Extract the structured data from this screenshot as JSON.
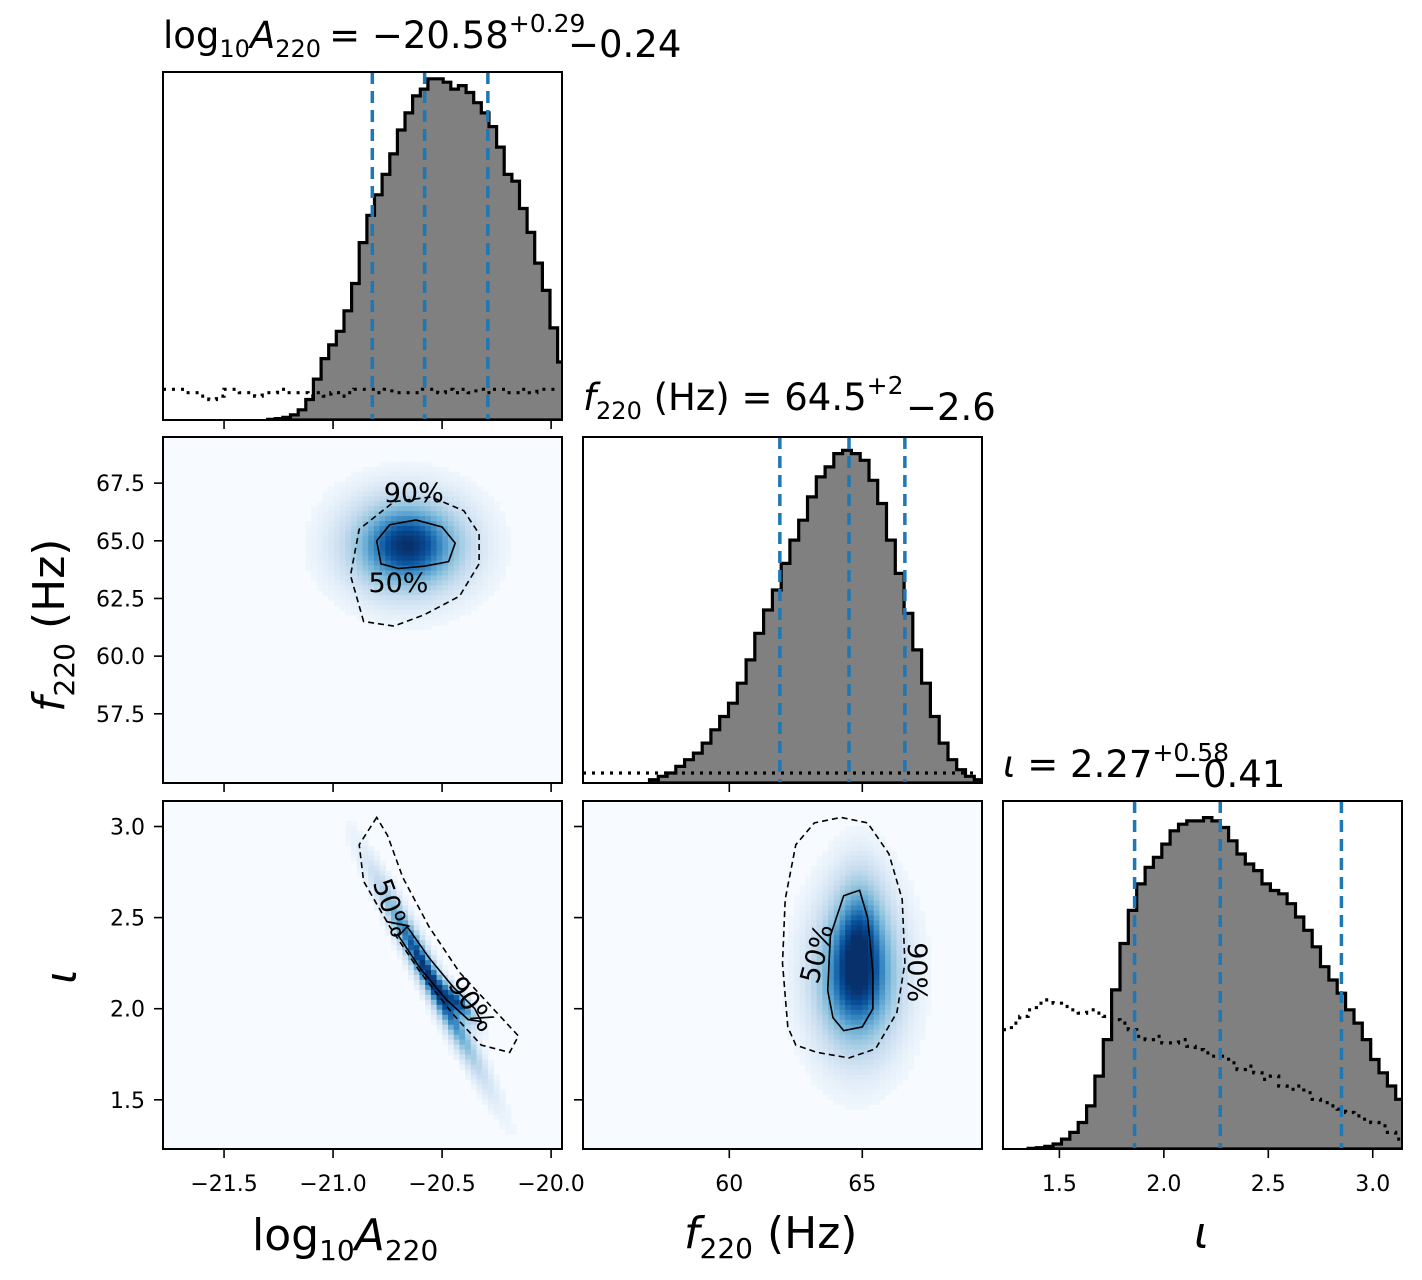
{
  "chart_data": {
    "type": "corner",
    "parameters": [
      {
        "key": "logA",
        "axis_label_base": "log",
        "axis_label_sub1": "10",
        "axis_label_var": "A",
        "axis_label_sub2": "220",
        "range": [
          -21.78,
          -19.95
        ],
        "ticks": [
          -21.5,
          -21.0,
          -20.5,
          -20.0
        ],
        "tick_labels": [
          "−21.5",
          "−21.0",
          "−20.5",
          "−20.0"
        ],
        "title": {
          "prefix_base": "log",
          "prefix_sub1": "10",
          "var": "A",
          "var_sub": "220",
          "unit": "",
          "median": "= −20.58",
          "plus": "+0.29",
          "minus": "−0.24"
        },
        "quantiles": [
          -20.82,
          -20.58,
          -20.29
        ],
        "posterior_hist": {
          "bin_start": -21.3,
          "bin_width": 0.035,
          "densities": [
            0.002,
            0.004,
            0.008,
            0.015,
            0.03,
            0.06,
            0.12,
            0.18,
            0.22,
            0.26,
            0.32,
            0.4,
            0.52,
            0.6,
            0.66,
            0.72,
            0.78,
            0.85,
            0.9,
            0.95,
            0.97,
            1.0,
            1.0,
            0.99,
            0.97,
            0.98,
            0.96,
            0.93,
            0.9,
            0.86,
            0.8,
            0.72,
            0.7,
            0.62,
            0.55,
            0.46,
            0.38,
            0.27,
            0.17,
            0.1,
            0.07,
            0.05,
            0.03,
            0.015,
            0.008,
            0.003
          ]
        },
        "prior_hist": {
          "bin_start": -21.78,
          "bin_width": 0.035,
          "densities": [
            0.09,
            0.09,
            0.09,
            0.08,
            0.08,
            0.07,
            0.06,
            0.07,
            0.09,
            0.09,
            0.08,
            0.08,
            0.07,
            0.08,
            0.08,
            0.09,
            0.08,
            0.08,
            0.08,
            0.07,
            0.08,
            0.07,
            0.08,
            0.07,
            0.08,
            0.09,
            0.09,
            0.09,
            0.08,
            0.09,
            0.08,
            0.08,
            0.08,
            0.08,
            0.09,
            0.09,
            0.08,
            0.09,
            0.08,
            0.09,
            0.08,
            0.09,
            0.08,
            0.09,
            0.09,
            0.08,
            0.08,
            0.09,
            0.08,
            0.09,
            0.09,
            0.09
          ]
        }
      },
      {
        "key": "f220",
        "axis_label_var": "f",
        "axis_label_sub": "220",
        "axis_label_unit": " (Hz)",
        "range": [
          54.5,
          69.5
        ],
        "ticks_diag": [
          60,
          65
        ],
        "tick_labels_diag": [
          "60",
          "65"
        ],
        "ticks_y": [
          57.5,
          60.0,
          62.5,
          65.0,
          67.5
        ],
        "tick_labels_y": [
          "57.5",
          "60.0",
          "62.5",
          "65.0",
          "67.5"
        ],
        "title": {
          "var": "f",
          "var_sub": "220",
          "unit": " (Hz)",
          "median": " = 64.5",
          "plus": "+2",
          "minus": "−2.6"
        },
        "quantiles": [
          61.9,
          64.5,
          66.6
        ],
        "posterior_hist": {
          "bin_start": 57.0,
          "bin_width": 0.33,
          "densities": [
            0.01,
            0.02,
            0.03,
            0.05,
            0.07,
            0.09,
            0.12,
            0.16,
            0.2,
            0.24,
            0.3,
            0.37,
            0.45,
            0.52,
            0.58,
            0.66,
            0.73,
            0.79,
            0.86,
            0.92,
            0.95,
            0.99,
            1.0,
            0.99,
            0.97,
            0.91,
            0.84,
            0.73,
            0.63,
            0.51,
            0.4,
            0.3,
            0.2,
            0.12,
            0.07,
            0.04,
            0.02,
            0.01
          ]
        },
        "prior_hist": {
          "bin_start": 54.5,
          "bin_width": 0.33,
          "densities": [
            0.03,
            0.03,
            0.03,
            0.03,
            0.03,
            0.03,
            0.03,
            0.03,
            0.03,
            0.03,
            0.03,
            0.03,
            0.03,
            0.03,
            0.03,
            0.03,
            0.03,
            0.03,
            0.03,
            0.03,
            0.03,
            0.03,
            0.03,
            0.03,
            0.03,
            0.03,
            0.03,
            0.03,
            0.03,
            0.03,
            0.03,
            0.03,
            0.03,
            0.03,
            0.03,
            0.03,
            0.03,
            0.03,
            0.03,
            0.03,
            0.03,
            0.03,
            0.03,
            0.03,
            0.03
          ]
        }
      },
      {
        "key": "iota",
        "axis_label_var": "ι",
        "range": [
          1.23,
          3.14
        ],
        "ticks": [
          1.5,
          2.0,
          2.5,
          3.0
        ],
        "tick_labels": [
          "1.5",
          "2.0",
          "2.5",
          "3.0"
        ],
        "tick_labels_y": [
          "1.5",
          "2.0",
          "2.5",
          "3.0"
        ],
        "title": {
          "var": "ι",
          "median": " = 2.27",
          "plus": "+0.58",
          "minus": "−0.41"
        },
        "quantiles": [
          1.86,
          2.27,
          2.85
        ],
        "posterior_hist": {
          "bin_start": 1.35,
          "bin_width": 0.04,
          "densities": [
            0.002,
            0.004,
            0.008,
            0.015,
            0.03,
            0.05,
            0.08,
            0.13,
            0.22,
            0.33,
            0.48,
            0.62,
            0.72,
            0.8,
            0.85,
            0.88,
            0.92,
            0.96,
            0.98,
            0.99,
            0.99,
            1.0,
            0.99,
            0.97,
            0.93,
            0.89,
            0.86,
            0.84,
            0.8,
            0.78,
            0.77,
            0.74,
            0.7,
            0.66,
            0.61,
            0.55,
            0.51,
            0.47,
            0.42,
            0.38,
            0.33,
            0.27,
            0.23,
            0.19,
            0.15,
            0.1,
            0.07,
            0.04,
            0.02
          ]
        },
        "prior_hist": {
          "bin_start": 1.23,
          "bin_width": 0.04,
          "densities": [
            0.36,
            0.38,
            0.4,
            0.42,
            0.44,
            0.45,
            0.44,
            0.43,
            0.42,
            0.41,
            0.42,
            0.41,
            0.4,
            0.39,
            0.38,
            0.36,
            0.34,
            0.33,
            0.34,
            0.32,
            0.32,
            0.33,
            0.31,
            0.3,
            0.29,
            0.28,
            0.28,
            0.26,
            0.24,
            0.25,
            0.23,
            0.21,
            0.22,
            0.19,
            0.18,
            0.19,
            0.17,
            0.15,
            0.14,
            0.13,
            0.12,
            0.11,
            0.1,
            0.09,
            0.08,
            0.07,
            0.05,
            0.03
          ]
        }
      }
    ],
    "joint_panels": [
      {
        "x": "logA",
        "y": "f220",
        "density_blobs": [
          {
            "cx": -20.66,
            "cy": 64.8,
            "sx": 0.17,
            "sy": 1.3,
            "rho": 0.0,
            "weight": 1.0
          }
        ],
        "contours": [
          {
            "level": "90%",
            "style": "dashed",
            "points": [
              [
                -20.86,
                61.5
              ],
              [
                -20.92,
                63.5
              ],
              [
                -20.88,
                65.5
              ],
              [
                -20.72,
                66.7
              ],
              [
                -20.55,
                66.9
              ],
              [
                -20.4,
                66.3
              ],
              [
                -20.33,
                65.3
              ],
              [
                -20.33,
                64.0
              ],
              [
                -20.42,
                62.6
              ],
              [
                -20.58,
                61.8
              ],
              [
                -20.72,
                61.3
              ]
            ]
          },
          {
            "level": "50%",
            "style": "solid",
            "points": [
              [
                -20.78,
                64.0
              ],
              [
                -20.8,
                65.0
              ],
              [
                -20.74,
                65.7
              ],
              [
                -20.62,
                65.9
              ],
              [
                -20.5,
                65.6
              ],
              [
                -20.44,
                64.9
              ],
              [
                -20.47,
                64.1
              ],
              [
                -20.58,
                63.9
              ],
              [
                -20.7,
                63.8
              ]
            ]
          }
        ],
        "contour_labels": [
          {
            "text": "90%",
            "x": -20.63,
            "y": 67.0,
            "angle": 0
          },
          {
            "text": "50%",
            "x": -20.7,
            "y": 63.1,
            "angle": 0
          }
        ]
      },
      {
        "x": "logA",
        "y": "iota",
        "density_blobs": [
          {
            "cx": -20.56,
            "cy": 2.18,
            "sx": 0.14,
            "sy": 0.31,
            "rho": -0.97,
            "weight": 1.0
          },
          {
            "cx": -20.42,
            "cy": 2.03,
            "sx": 0.05,
            "sy": 0.07,
            "rho": -0.8,
            "weight": 0.8
          }
        ],
        "contours": [
          {
            "level": "90%",
            "style": "dashed",
            "points": [
              [
                -20.8,
                3.05
              ],
              [
                -20.88,
                2.9
              ],
              [
                -20.86,
                2.7
              ],
              [
                -20.74,
                2.45
              ],
              [
                -20.6,
                2.2
              ],
              [
                -20.45,
                1.97
              ],
              [
                -20.32,
                1.8
              ],
              [
                -20.19,
                1.76
              ],
              [
                -20.15,
                1.85
              ],
              [
                -20.25,
                1.98
              ],
              [
                -20.42,
                2.2
              ],
              [
                -20.56,
                2.45
              ],
              [
                -20.68,
                2.72
              ],
              [
                -20.75,
                2.95
              ]
            ]
          },
          {
            "level": "50%",
            "style": "solid",
            "points": [
              [
                -20.7,
                2.4
              ],
              [
                -20.6,
                2.22
              ],
              [
                -20.48,
                2.05
              ],
              [
                -20.38,
                1.94
              ],
              [
                -20.32,
                1.93
              ],
              [
                -20.35,
                2.0
              ],
              [
                -20.45,
                2.12
              ],
              [
                -20.56,
                2.28
              ],
              [
                -20.66,
                2.45
              ]
            ]
          }
        ],
        "contour_labels": [
          {
            "text": "50%",
            "x": -20.74,
            "y": 2.55,
            "angle": 70
          },
          {
            "text": "90%",
            "x": -20.37,
            "y": 2.02,
            "angle": 55
          }
        ]
      },
      {
        "x": "f220",
        "y": "iota",
        "density_blobs": [
          {
            "cx": 64.8,
            "cy": 2.18,
            "sx": 1.0,
            "sy": 0.26,
            "rho": 0.0,
            "weight": 1.0
          },
          {
            "cx": 64.9,
            "cy": 2.5,
            "sx": 0.6,
            "sy": 0.2,
            "rho": 0.0,
            "weight": 0.35
          }
        ],
        "contours": [
          {
            "level": "90%",
            "style": "dashed",
            "points": [
              [
                62.2,
                1.9
              ],
              [
                62.0,
                2.25
              ],
              [
                62.1,
                2.6
              ],
              [
                62.5,
                2.9
              ],
              [
                63.2,
                3.02
              ],
              [
                64.2,
                3.05
              ],
              [
                65.2,
                3.02
              ],
              [
                66.0,
                2.85
              ],
              [
                66.5,
                2.6
              ],
              [
                66.6,
                2.25
              ],
              [
                66.3,
                1.98
              ],
              [
                65.5,
                1.78
              ],
              [
                64.5,
                1.73
              ],
              [
                63.3,
                1.76
              ],
              [
                62.5,
                1.8
              ]
            ]
          },
          {
            "level": "50%",
            "style": "solid",
            "points": [
              [
                63.7,
                2.1
              ],
              [
                63.8,
                2.4
              ],
              [
                64.3,
                2.62
              ],
              [
                64.9,
                2.65
              ],
              [
                65.2,
                2.5
              ],
              [
                65.4,
                2.2
              ],
              [
                65.4,
                2.0
              ],
              [
                65.0,
                1.9
              ],
              [
                64.3,
                1.88
              ],
              [
                63.9,
                1.95
              ]
            ]
          }
        ],
        "contour_labels": [
          {
            "text": "50%",
            "x": 63.35,
            "y": 2.3,
            "angle": -75
          },
          {
            "text": "90%",
            "x": 67.0,
            "y": 2.2,
            "angle": 90
          }
        ]
      }
    ],
    "colors": {
      "posterior_fill": "#808080",
      "posterior_edge": "#000000",
      "quantile_line": "#1f77b4",
      "prior_line": "#000000",
      "density_low": "#f7fbff",
      "density_high": "#08306b"
    },
    "grid": false
  }
}
